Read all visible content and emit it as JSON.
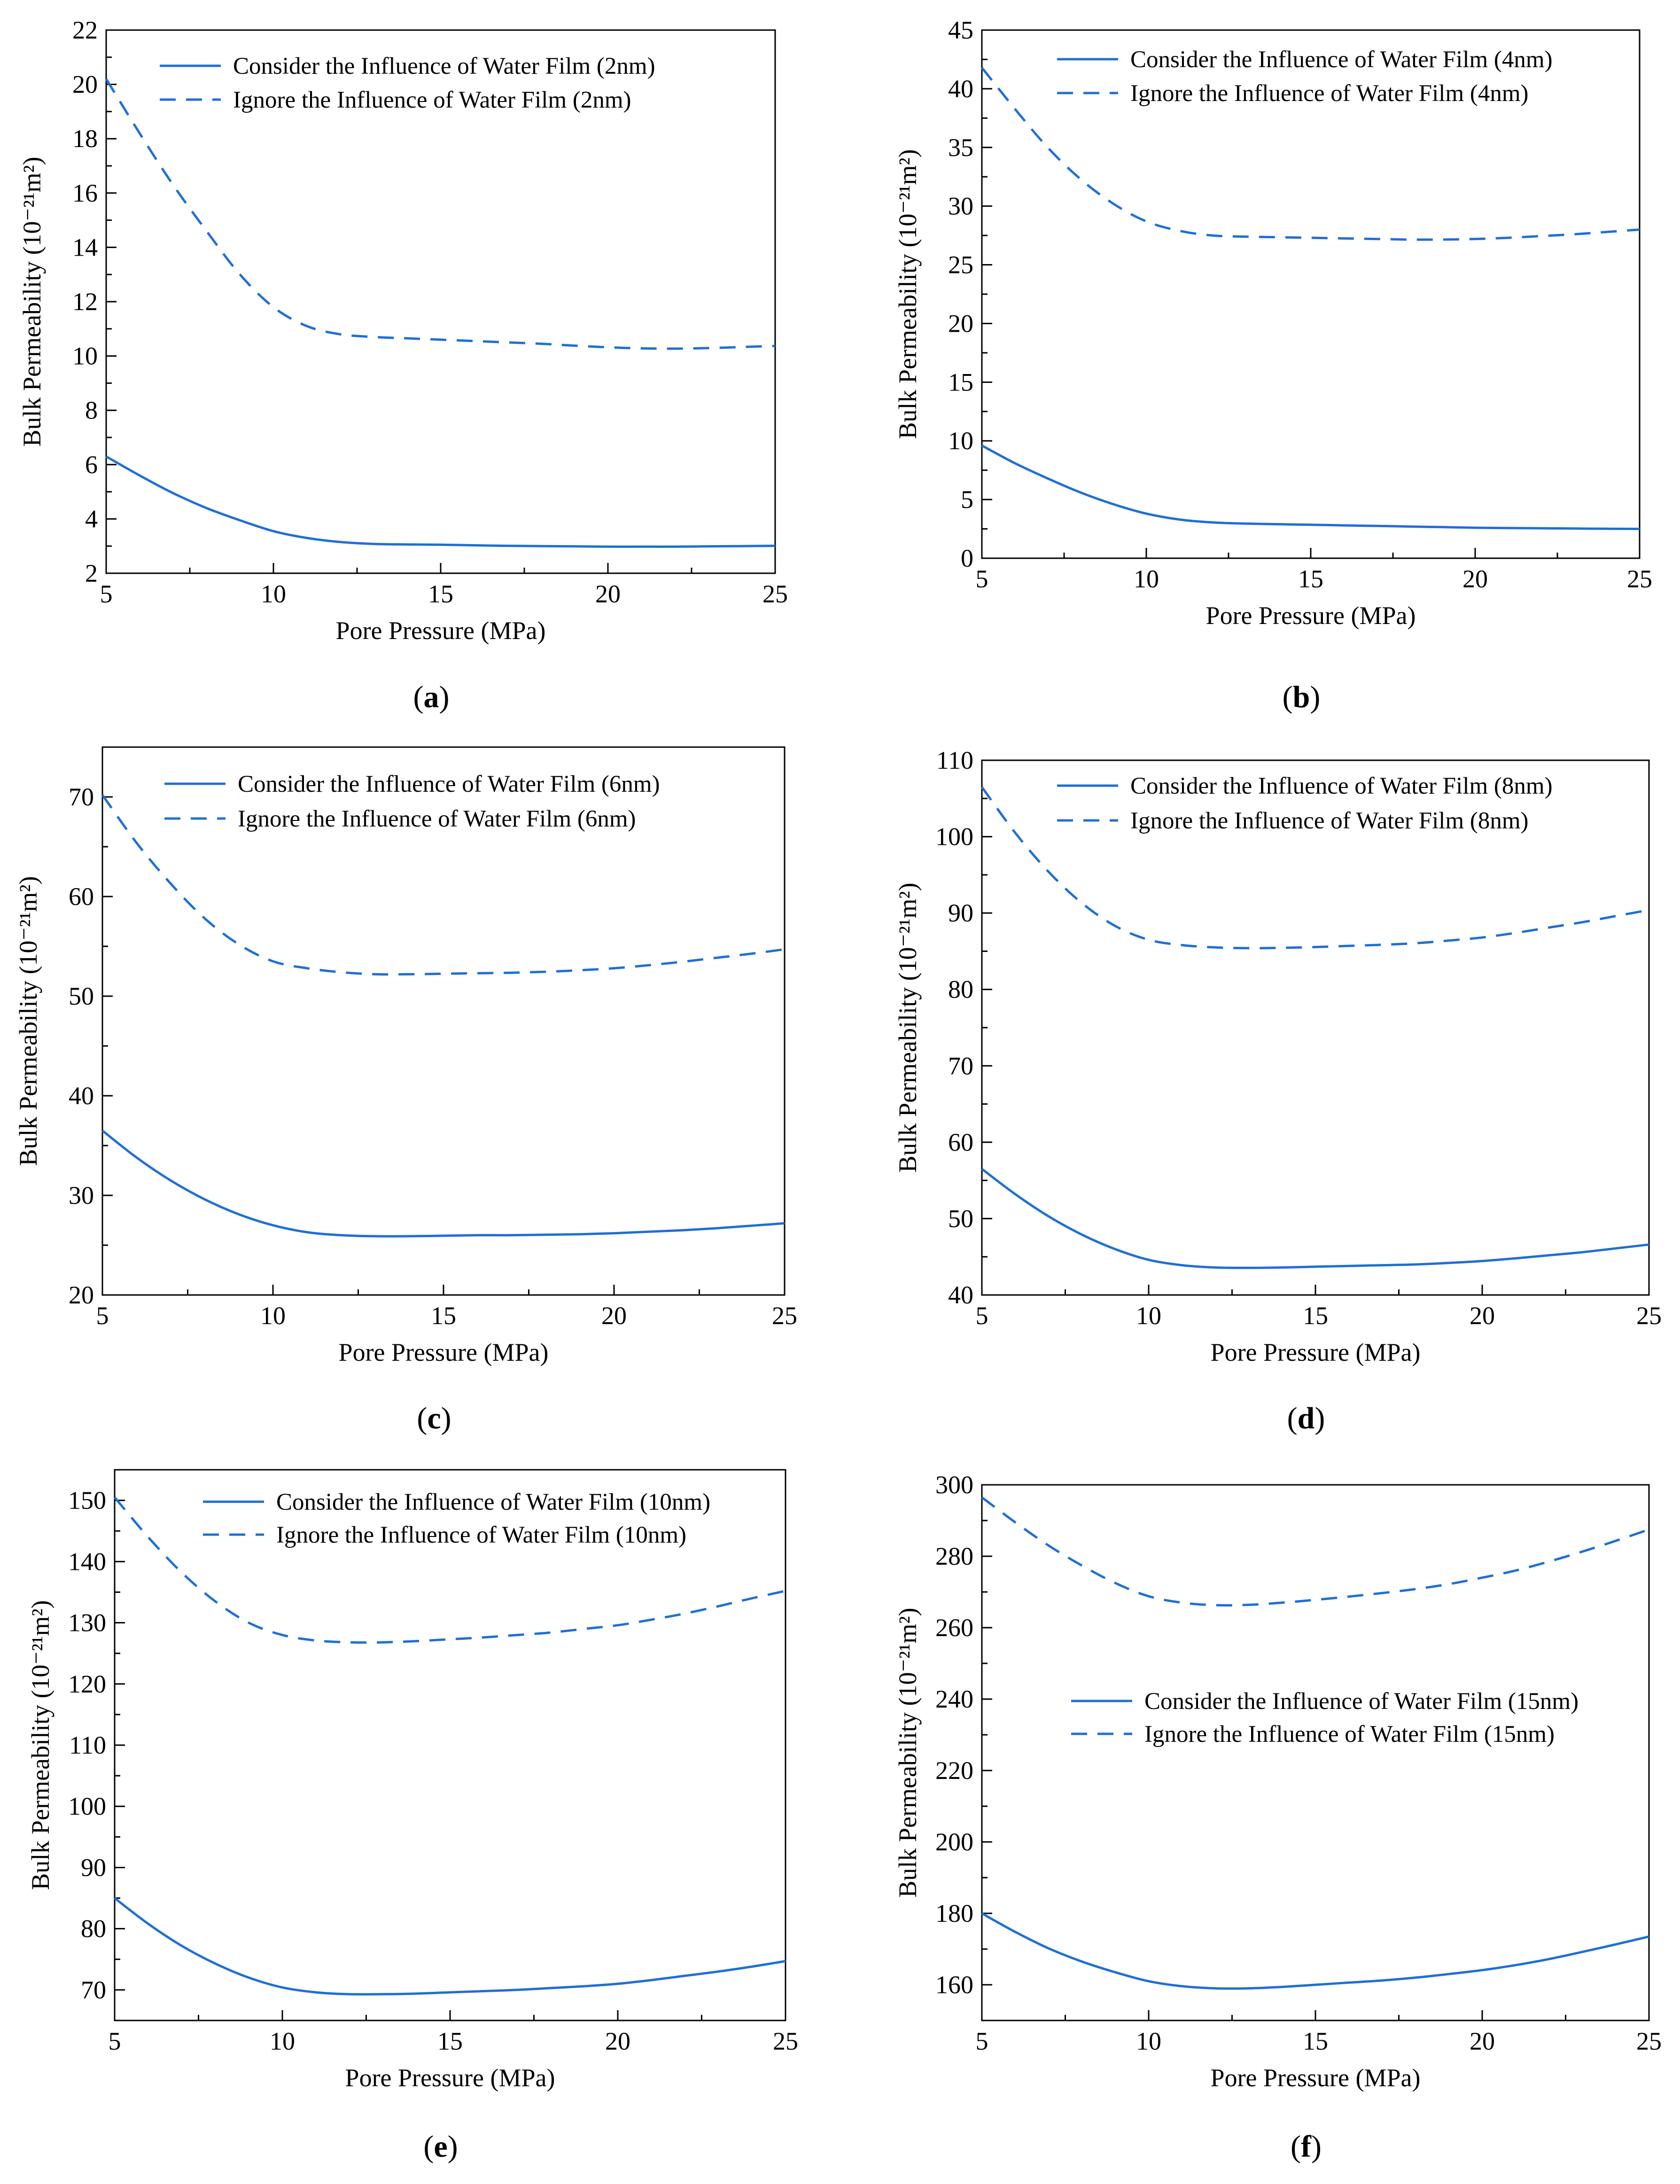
{
  "figure": {
    "series_color": "#1f6fd6",
    "chart_data": [
      {
        "type": "line",
        "panel_label": "a",
        "xlabel": "Pore Pressure (MPa)",
        "ylabel": "Bulk Permeability (10⁻²¹m²)",
        "xlim": [
          5,
          25
        ],
        "ylim": [
          2,
          22
        ],
        "xticks": [
          5,
          10,
          15,
          20,
          25
        ],
        "yticks": [
          2,
          4,
          6,
          8,
          10,
          12,
          14,
          16,
          18,
          20,
          22
        ],
        "x": [
          5,
          6,
          7,
          8,
          9,
          10,
          11,
          12,
          13,
          14,
          15,
          16,
          17,
          18,
          19,
          20,
          21,
          22,
          23,
          24,
          25
        ],
        "series": [
          {
            "name": "Consider the Influence of Water Film (2nm)",
            "style": "solid",
            "values": [
              6.3,
              5.6,
              4.95,
              4.4,
              3.95,
              3.55,
              3.3,
              3.15,
              3.08,
              3.06,
              3.05,
              3.03,
              3.01,
              3.0,
              2.99,
              2.98,
              2.98,
              2.98,
              2.99,
              3.0,
              3.01
            ]
          },
          {
            "name": "Ignore the Influence of Water Film (2nm)",
            "style": "dashed",
            "values": [
              20.2,
              18.2,
              16.3,
              14.6,
              13.0,
              11.8,
              11.1,
              10.8,
              10.7,
              10.65,
              10.6,
              10.55,
              10.5,
              10.45,
              10.38,
              10.32,
              10.28,
              10.27,
              10.29,
              10.33,
              10.37
            ]
          }
        ],
        "legend_position": "top-right"
      },
      {
        "type": "line",
        "panel_label": "b",
        "xlabel": "Pore Pressure (MPa)",
        "ylabel": "Bulk Permeability (10⁻²¹m²)",
        "xlim": [
          5,
          25
        ],
        "ylim": [
          0,
          45
        ],
        "xticks": [
          5,
          10,
          15,
          20,
          25
        ],
        "yticks": [
          0,
          5,
          10,
          15,
          20,
          25,
          30,
          35,
          40,
          45
        ],
        "x": [
          5,
          6,
          7,
          8,
          9,
          10,
          11,
          12,
          13,
          14,
          15,
          16,
          17,
          18,
          19,
          20,
          21,
          22,
          23,
          24,
          25
        ],
        "series": [
          {
            "name": "Consider the Influence of Water Film (4nm)",
            "style": "solid",
            "values": [
              9.6,
              8.1,
              6.8,
              5.6,
              4.6,
              3.8,
              3.3,
              3.05,
              2.95,
              2.9,
              2.85,
              2.8,
              2.75,
              2.7,
              2.65,
              2.6,
              2.57,
              2.55,
              2.53,
              2.51,
              2.5
            ]
          },
          {
            "name": "Ignore the Influence of Water Film (4nm)",
            "style": "dashed",
            "values": [
              41.8,
              38.3,
              35.0,
              32.3,
              30.2,
              28.7,
              27.9,
              27.5,
              27.4,
              27.35,
              27.3,
              27.25,
              27.2,
              27.15,
              27.15,
              27.2,
              27.3,
              27.45,
              27.6,
              27.8,
              28.0
            ]
          }
        ],
        "legend_position": "top-right"
      },
      {
        "type": "line",
        "panel_label": "c",
        "xlabel": "Pore Pressure (MPa)",
        "ylabel": "Bulk Permeability (10⁻²¹m²)",
        "xlim": [
          5,
          25
        ],
        "ylim": [
          20,
          75
        ],
        "xticks": [
          5,
          10,
          15,
          20,
          25
        ],
        "yticks": [
          20,
          30,
          40,
          50,
          60,
          70
        ],
        "x": [
          5,
          6,
          7,
          8,
          9,
          10,
          11,
          12,
          13,
          14,
          15,
          16,
          17,
          18,
          19,
          20,
          21,
          22,
          23,
          24,
          25
        ],
        "series": [
          {
            "name": "Consider the Influence of Water Film (6nm)",
            "style": "solid",
            "values": [
              36.5,
              33.8,
              31.5,
              29.6,
              28.1,
              27.0,
              26.3,
              26.0,
              25.9,
              25.9,
              25.95,
              26.0,
              26.0,
              26.05,
              26.1,
              26.2,
              26.35,
              26.5,
              26.7,
              26.95,
              27.2
            ]
          },
          {
            "name": "Ignore the Influence of Water Film (6nm)",
            "style": "dashed",
            "values": [
              70.2,
              65.4,
              61.3,
              57.8,
              55.2,
              53.5,
              52.8,
              52.4,
              52.2,
              52.2,
              52.25,
              52.3,
              52.35,
              52.45,
              52.6,
              52.8,
              53.1,
              53.45,
              53.85,
              54.25,
              54.7
            ]
          }
        ],
        "legend_position": "top-right"
      },
      {
        "type": "line",
        "panel_label": "d",
        "xlabel": "Pore Pressure (MPa)",
        "ylabel": "Bulk Permeability (10⁻²¹m²)",
        "xlim": [
          5,
          25
        ],
        "ylim": [
          40,
          110
        ],
        "xticks": [
          5,
          10,
          15,
          20,
          25
        ],
        "yticks": [
          40,
          50,
          60,
          70,
          80,
          90,
          100,
          110
        ],
        "x": [
          5,
          6,
          7,
          8,
          9,
          10,
          11,
          12,
          13,
          14,
          15,
          16,
          17,
          18,
          19,
          20,
          21,
          22,
          23,
          24,
          25
        ],
        "series": [
          {
            "name": "Consider the Influence of Water Film (8nm)",
            "style": "solid",
            "values": [
              56.5,
              53.2,
              50.3,
              47.9,
              46.0,
              44.6,
              43.9,
              43.6,
              43.55,
              43.6,
              43.7,
              43.8,
              43.9,
              44.0,
              44.2,
              44.45,
              44.8,
              45.2,
              45.6,
              46.1,
              46.6
            ]
          },
          {
            "name": "Ignore the Influence of Water Film (8nm)",
            "style": "dashed",
            "values": [
              106.5,
              100.5,
              95.4,
              91.3,
              88.3,
              86.5,
              85.8,
              85.5,
              85.4,
              85.45,
              85.55,
              85.7,
              85.85,
              86.05,
              86.4,
              86.8,
              87.4,
              88.1,
              88.8,
              89.6,
              90.4
            ]
          }
        ],
        "legend_position": "top-right"
      },
      {
        "type": "line",
        "panel_label": "e",
        "xlabel": "Pore Pressure (MPa)",
        "ylabel": "Bulk Permeability (10⁻²¹m²)",
        "xlim": [
          5,
          25
        ],
        "ylim": [
          65,
          155
        ],
        "xticks": [
          5,
          10,
          15,
          20,
          25
        ],
        "yticks": [
          70,
          80,
          90,
          100,
          110,
          120,
          130,
          140,
          150
        ],
        "x": [
          5,
          6,
          7,
          8,
          9,
          10,
          11,
          12,
          13,
          14,
          15,
          16,
          17,
          18,
          19,
          20,
          21,
          22,
          23,
          24,
          25
        ],
        "series": [
          {
            "name": "Consider the Influence of Water Film (10nm)",
            "style": "solid",
            "values": [
              85.0,
              80.8,
              77.2,
              74.3,
              72.0,
              70.4,
              69.6,
              69.3,
              69.3,
              69.4,
              69.6,
              69.8,
              70.0,
              70.3,
              70.6,
              71.0,
              71.6,
              72.3,
              73.0,
              73.8,
              74.7
            ]
          },
          {
            "name": "Ignore the Influence of Water Film (10nm)",
            "style": "dashed",
            "values": [
              150.5,
              144.0,
              138.2,
              133.5,
              130.0,
              128.0,
              127.1,
              126.8,
              126.8,
              127.0,
              127.3,
              127.6,
              128.0,
              128.4,
              129.0,
              129.6,
              130.5,
              131.5,
              132.7,
              134.0,
              135.2
            ]
          }
        ],
        "legend_position": "top-right"
      },
      {
        "type": "line",
        "panel_label": "f",
        "xlabel": "Pore Pressure (MPa)",
        "ylabel": "Bulk Permeability (10⁻²¹m²)",
        "xlim": [
          5,
          25
        ],
        "ylim": [
          150,
          300
        ],
        "xticks": [
          5,
          10,
          15,
          20,
          25
        ],
        "yticks": [
          160,
          180,
          200,
          220,
          240,
          260,
          280,
          300
        ],
        "x": [
          5,
          6,
          7,
          8,
          9,
          10,
          11,
          12,
          13,
          14,
          15,
          16,
          17,
          18,
          19,
          20,
          21,
          22,
          23,
          24,
          25
        ],
        "series": [
          {
            "name": "Consider the Influence of Water Film (15nm)",
            "style": "solid",
            "values": [
              180.0,
              174.8,
              170.2,
              166.5,
              163.5,
              161.0,
              159.6,
              159.0,
              159.0,
              159.4,
              160.0,
              160.6,
              161.2,
              162.0,
              163.0,
              164.1,
              165.5,
              167.2,
              169.2,
              171.3,
              173.5
            ]
          },
          {
            "name": "Ignore the Influence of Water Film (15nm)",
            "style": "dashed",
            "values": [
              296.5,
              289.5,
              283.0,
              277.4,
              272.5,
              268.8,
              267.0,
              266.3,
              266.4,
              267.0,
              267.8,
              268.7,
              269.7,
              270.8,
              272.2,
              274.0,
              276.0,
              278.5,
              281.3,
              284.3,
              287.5
            ]
          }
        ],
        "legend_position": "middle-right"
      }
    ]
  }
}
